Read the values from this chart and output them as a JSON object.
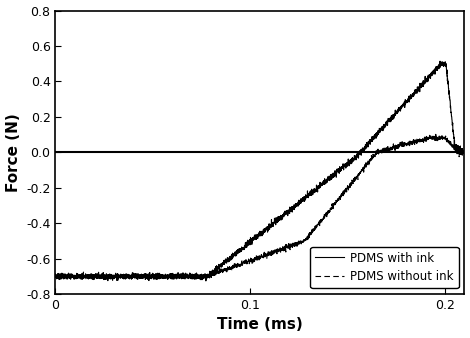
{
  "title": "",
  "xlabel": "Time (ms)",
  "ylabel": "Force (N)",
  "xlim": [
    0.0,
    0.21
  ],
  "ylim": [
    -0.8,
    0.8
  ],
  "xticks": [
    0.0,
    0.1,
    0.2
  ],
  "xticklabels": [
    "0",
    "0.1",
    "0.2"
  ],
  "yticks": [
    -0.8,
    -0.6,
    -0.4,
    -0.2,
    0.0,
    0.2,
    0.4,
    0.6,
    0.8
  ],
  "yticklabels": [
    "-0.8",
    "-0.6",
    "-0.4",
    "-0.2",
    "0.0",
    "0.2",
    "0.4",
    "0.6",
    "0.8"
  ],
  "legend_labels": [
    "PDMS with ink",
    "PDMS without ink"
  ],
  "line1_color": "#000000",
  "line2_color": "#000000",
  "background_color": "#ffffff",
  "figsize": [
    4.7,
    3.38
  ],
  "dpi": 100
}
